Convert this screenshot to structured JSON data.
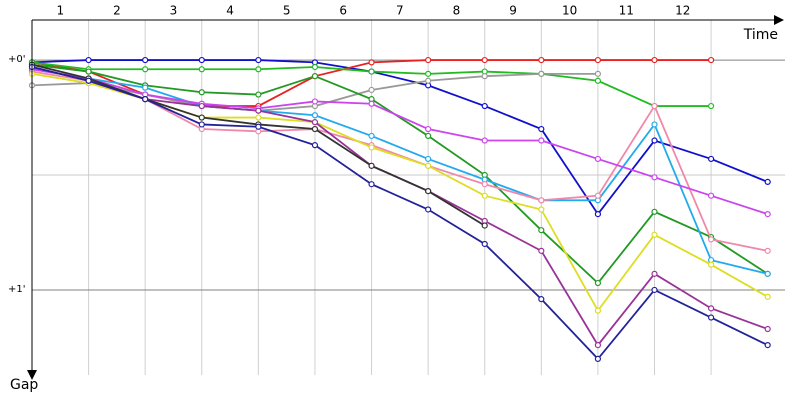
{
  "chart_data": {
    "type": "line",
    "x_axis_label": "Time",
    "y_axis_label": "Gap",
    "x": [
      0,
      1,
      2,
      3,
      4,
      5,
      6,
      7,
      8,
      9,
      10,
      11,
      12,
      13
    ],
    "xlim": [
      0,
      13.2
    ],
    "xticks": [
      {
        "value": 0.5,
        "label": "1"
      },
      {
        "value": 1.5,
        "label": "2"
      },
      {
        "value": 2.5,
        "label": "3"
      },
      {
        "value": 3.5,
        "label": "4"
      },
      {
        "value": 4.5,
        "label": "5"
      },
      {
        "value": 5.5,
        "label": "6"
      },
      {
        "value": 6.5,
        "label": "7"
      },
      {
        "value": 7.5,
        "label": "8"
      },
      {
        "value": 8.5,
        "label": "9"
      },
      {
        "value": 9.5,
        "label": "10"
      },
      {
        "value": 10.5,
        "label": "11"
      },
      {
        "value": 11.5,
        "label": "12"
      }
    ],
    "x_grid": [
      1,
      2,
      3,
      4,
      5,
      6,
      7,
      8,
      9,
      10,
      11,
      12
    ],
    "ylim": [
      -0.17,
      1.37
    ],
    "yticks": [
      {
        "value": 0,
        "label": "+0'"
      },
      {
        "value": 1,
        "label": "+1'"
      }
    ],
    "y_minor_grid": [
      0.5
    ],
    "y_inverted": true,
    "series": [
      {
        "color": "#1010cc",
        "values": [
          0.01,
          0,
          0,
          0,
          0,
          0.01,
          0.05,
          0.11,
          0.2,
          0.3,
          0.67,
          0.35,
          0.43,
          0.53
        ]
      },
      {
        "color": "#e82020",
        "values": [
          0.01,
          0.05,
          0.15,
          0.2,
          0.2,
          0.07,
          0.01,
          0,
          0,
          0,
          0,
          0,
          0,
          null
        ]
      },
      {
        "color": "#22bb22",
        "values": [
          0.01,
          0.04,
          0.04,
          0.04,
          0.04,
          0.03,
          0.05,
          0.06,
          0.05,
          0.06,
          0.09,
          0.2,
          0.2,
          null
        ]
      },
      {
        "color": "#999999",
        "values": [
          0.11,
          0.1,
          0.15,
          0.2,
          0.22,
          0.2,
          0.13,
          0.09,
          0.07,
          0.06,
          0.06,
          null,
          null,
          null
        ]
      },
      {
        "color": "#229922",
        "values": [
          0.02,
          0.05,
          0.11,
          0.14,
          0.15,
          0.07,
          0.17,
          0.33,
          0.5,
          0.74,
          0.97,
          0.66,
          0.77,
          0.93
        ]
      },
      {
        "color": "#22aaee",
        "values": [
          0.04,
          0.08,
          0.12,
          0.2,
          0.22,
          0.24,
          0.33,
          0.43,
          0.52,
          0.61,
          0.61,
          0.28,
          0.87,
          0.93
        ]
      },
      {
        "color": "#f088aa",
        "values": [
          0.05,
          0.09,
          0.17,
          0.3,
          0.31,
          0.3,
          0.37,
          0.46,
          0.54,
          0.61,
          0.59,
          0.2,
          0.78,
          0.83
        ]
      },
      {
        "color": "#cc44ee",
        "values": [
          0.04,
          0.08,
          0.15,
          0.19,
          0.21,
          0.18,
          0.19,
          0.3,
          0.35,
          0.35,
          0.43,
          0.51,
          0.59,
          0.67
        ]
      },
      {
        "color": "#dddd22",
        "values": [
          0.06,
          0.1,
          0.17,
          0.25,
          0.25,
          0.27,
          0.38,
          0.46,
          0.59,
          0.65,
          1.09,
          0.76,
          0.89,
          1.03
        ]
      },
      {
        "color": "#993399",
        "values": [
          0.03,
          0.09,
          0.17,
          0.2,
          0.22,
          0.27,
          0.46,
          0.57,
          0.7,
          0.83,
          1.24,
          0.93,
          1.08,
          1.17
        ]
      },
      {
        "color": "#333333",
        "values": [
          0.02,
          0.08,
          0.17,
          0.25,
          0.28,
          0.3,
          0.46,
          0.57,
          0.72,
          null,
          null,
          null,
          null,
          null
        ]
      },
      {
        "color": "#222299",
        "values": [
          0.03,
          0.09,
          0.17,
          0.28,
          0.29,
          0.37,
          0.54,
          0.65,
          0.8,
          1.04,
          1.3,
          1,
          1.12,
          1.24
        ]
      }
    ]
  }
}
